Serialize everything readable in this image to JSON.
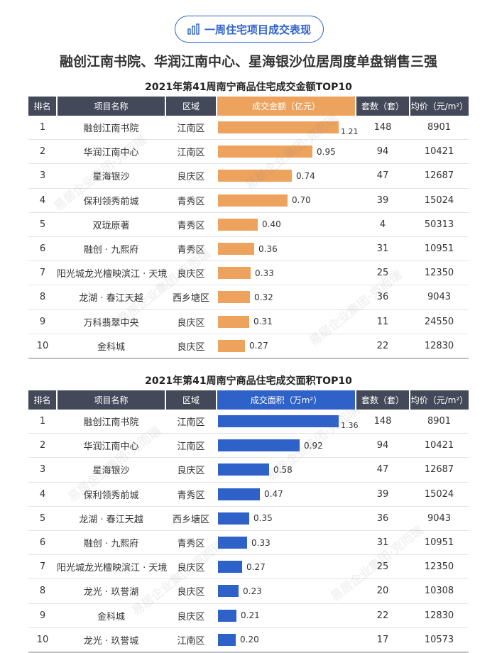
{
  "header": {
    "badge_text": "一周住宅项目成交表现",
    "title": "融创江南书院、华润江南中心、星海银沙位居周度单盘销售三强"
  },
  "columns": {
    "rank": "排名",
    "name": "项目名称",
    "district": "区域",
    "units": "套数（套）",
    "price": "均价（元/m²）"
  },
  "watermark": "易居企业集团·克而瑞",
  "chart_data": [
    {
      "type": "bar",
      "title": "2021年第41周南宁商品住宅成交金额TOP10",
      "metric_label": "成交金额（亿元）",
      "max": 1.21,
      "rows": [
        {
          "rank": "1",
          "name": "融创江南书院",
          "district": "江南区",
          "value": 1.21,
          "value_text": "1.21",
          "units": "148",
          "price": "8901"
        },
        {
          "rank": "2",
          "name": "华润江南中心",
          "district": "江南区",
          "value": 0.95,
          "value_text": "0.95",
          "units": "94",
          "price": "10421"
        },
        {
          "rank": "3",
          "name": "星海银沙",
          "district": "良庆区",
          "value": 0.74,
          "value_text": "0.74",
          "units": "47",
          "price": "12687"
        },
        {
          "rank": "4",
          "name": "保利领秀前城",
          "district": "青秀区",
          "value": 0.7,
          "value_text": "0.70",
          "units": "39",
          "price": "15024"
        },
        {
          "rank": "5",
          "name": "双珑原著",
          "district": "青秀区",
          "value": 0.4,
          "value_text": "0.40",
          "units": "4",
          "price": "50313"
        },
        {
          "rank": "6",
          "name": "融创 · 九熙府",
          "district": "青秀区",
          "value": 0.36,
          "value_text": "0.36",
          "units": "31",
          "price": "10951"
        },
        {
          "rank": "7",
          "name": "阳光城龙光檀映滨江 · 天境",
          "district": "良庆区",
          "value": 0.33,
          "value_text": "0.33",
          "units": "25",
          "price": "12350"
        },
        {
          "rank": "8",
          "name": "龙湖 · 春江天越",
          "district": "西乡塘区",
          "value": 0.32,
          "value_text": "0.32",
          "units": "36",
          "price": "9043"
        },
        {
          "rank": "9",
          "name": "万科翡翠中央",
          "district": "良庆区",
          "value": 0.31,
          "value_text": "0.31",
          "units": "11",
          "price": "24550"
        },
        {
          "rank": "10",
          "name": "金科城",
          "district": "良庆区",
          "value": 0.27,
          "value_text": "0.27",
          "units": "22",
          "price": "12830"
        }
      ]
    },
    {
      "type": "bar",
      "title": "2021年第41周南宁商品住宅成交面积TOP10",
      "metric_label": "成交面积（万m²）",
      "max": 1.36,
      "rows": [
        {
          "rank": "1",
          "name": "融创江南书院",
          "district": "江南区",
          "value": 1.36,
          "value_text": "1.36",
          "units": "148",
          "price": "8901"
        },
        {
          "rank": "2",
          "name": "华润江南中心",
          "district": "江南区",
          "value": 0.92,
          "value_text": "0.92",
          "units": "94",
          "price": "10421"
        },
        {
          "rank": "3",
          "name": "星海银沙",
          "district": "良庆区",
          "value": 0.58,
          "value_text": "0.58",
          "units": "47",
          "price": "12687"
        },
        {
          "rank": "4",
          "name": "保利领秀前城",
          "district": "青秀区",
          "value": 0.47,
          "value_text": "0.47",
          "units": "39",
          "price": "15024"
        },
        {
          "rank": "5",
          "name": "龙湖 · 春江天越",
          "district": "西乡塘区",
          "value": 0.35,
          "value_text": "0.35",
          "units": "36",
          "price": "9043"
        },
        {
          "rank": "6",
          "name": "融创 · 九熙府",
          "district": "青秀区",
          "value": 0.33,
          "value_text": "0.33",
          "units": "31",
          "price": "10951"
        },
        {
          "rank": "7",
          "name": "阳光城龙光檀映滨江 · 天境",
          "district": "良庆区",
          "value": 0.27,
          "value_text": "0.27",
          "units": "25",
          "price": "12350"
        },
        {
          "rank": "8",
          "name": "龙光 · 玖誉湖",
          "district": "良庆区",
          "value": 0.23,
          "value_text": "0.23",
          "units": "20",
          "price": "10308"
        },
        {
          "rank": "9",
          "name": "金科城",
          "district": "良庆区",
          "value": 0.21,
          "value_text": "0.21",
          "units": "22",
          "price": "12830"
        },
        {
          "rank": "10",
          "name": "龙光 · 玖誉城",
          "district": "江南区",
          "value": 0.2,
          "value_text": "0.20",
          "units": "17",
          "price": "10573"
        }
      ]
    }
  ],
  "colors": {
    "header_dark": "#44495a",
    "amount_bar": "#eda35e",
    "area_bar": "#2f62c9",
    "badge": "#2f62c9"
  }
}
